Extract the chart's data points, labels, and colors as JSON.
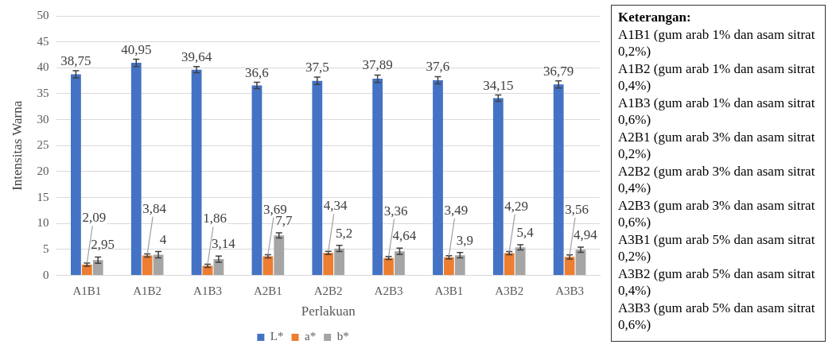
{
  "chart_data": {
    "type": "bar",
    "xlabel": "Perlakuan",
    "ylabel": "Intensitas Warna",
    "categories": [
      "A1B1",
      "A1B2",
      "A1B3",
      "A2B1",
      "A2B2",
      "A2B3",
      "A3B1",
      "A3B2",
      "A3B3"
    ],
    "series": [
      {
        "name": "L*",
        "color": "#4472c4",
        "values": [
          38.75,
          40.95,
          39.64,
          36.6,
          37.5,
          37.89,
          37.6,
          34.15,
          36.79
        ],
        "errors": [
          0.7,
          0.7,
          0.6,
          0.6,
          0.7,
          0.7,
          0.7,
          0.6,
          0.7
        ],
        "value_labels": [
          "38,75",
          "40,95",
          "39,64",
          "36,6",
          "37,5",
          "37,89",
          "37,6",
          "34,15",
          "36,79"
        ]
      },
      {
        "name": "a*",
        "color": "#ed7d31",
        "values": [
          2.09,
          3.84,
          1.86,
          3.69,
          4.34,
          3.36,
          3.49,
          4.29,
          3.56
        ],
        "errors": [
          0.3,
          0.3,
          0.3,
          0.3,
          0.3,
          0.3,
          0.3,
          0.3,
          0.4
        ],
        "value_labels": [
          "2,09",
          "3,84",
          "1,86",
          "3,69",
          "4,34",
          "3,36",
          "3,49",
          "4,29",
          "3,56"
        ]
      },
      {
        "name": "b*",
        "color": "#a5a5a5",
        "values": [
          2.95,
          4,
          3.14,
          7.7,
          5.2,
          4.64,
          3.9,
          5.4,
          4.94
        ],
        "errors": [
          0.6,
          0.6,
          0.6,
          0.5,
          0.6,
          0.6,
          0.5,
          0.5,
          0.5
        ],
        "value_labels": [
          "2,95",
          "4",
          "3,14",
          "7,7",
          "5,2",
          "4,64",
          "3,9",
          "5,4",
          "4,94"
        ]
      }
    ],
    "ylim": [
      0,
      50
    ],
    "yticks": [
      0,
      5,
      10,
      15,
      20,
      25,
      30,
      35,
      40,
      45,
      50
    ],
    "grid": "y",
    "legend": "bottom",
    "annotations": [
      "Keterangan:",
      "A1B1 (gum arab 1% dan asam sitrat 0,2%)",
      "A1B2 (gum arab 1% dan asam sitrat 0,4%)",
      "A1B3 (gum arab 1% dan asam sitrat 0,6%)",
      "A2B1 (gum arab 3% dan asam sitrat 0,2%)",
      "A2B2 (gum arab 3% dan asam sitrat 0,4%)",
      "A2B3 (gum arab 3% dan asam sitrat 0,6%)",
      "A3B1 (gum arab 5% dan asam sitrat 0,2%)",
      "A3B2 (gum arab 5% dan asam sitrat 0,4%)",
      "A3B3 (gum arab 5% dan asam sitrat 0,6%)"
    ]
  }
}
